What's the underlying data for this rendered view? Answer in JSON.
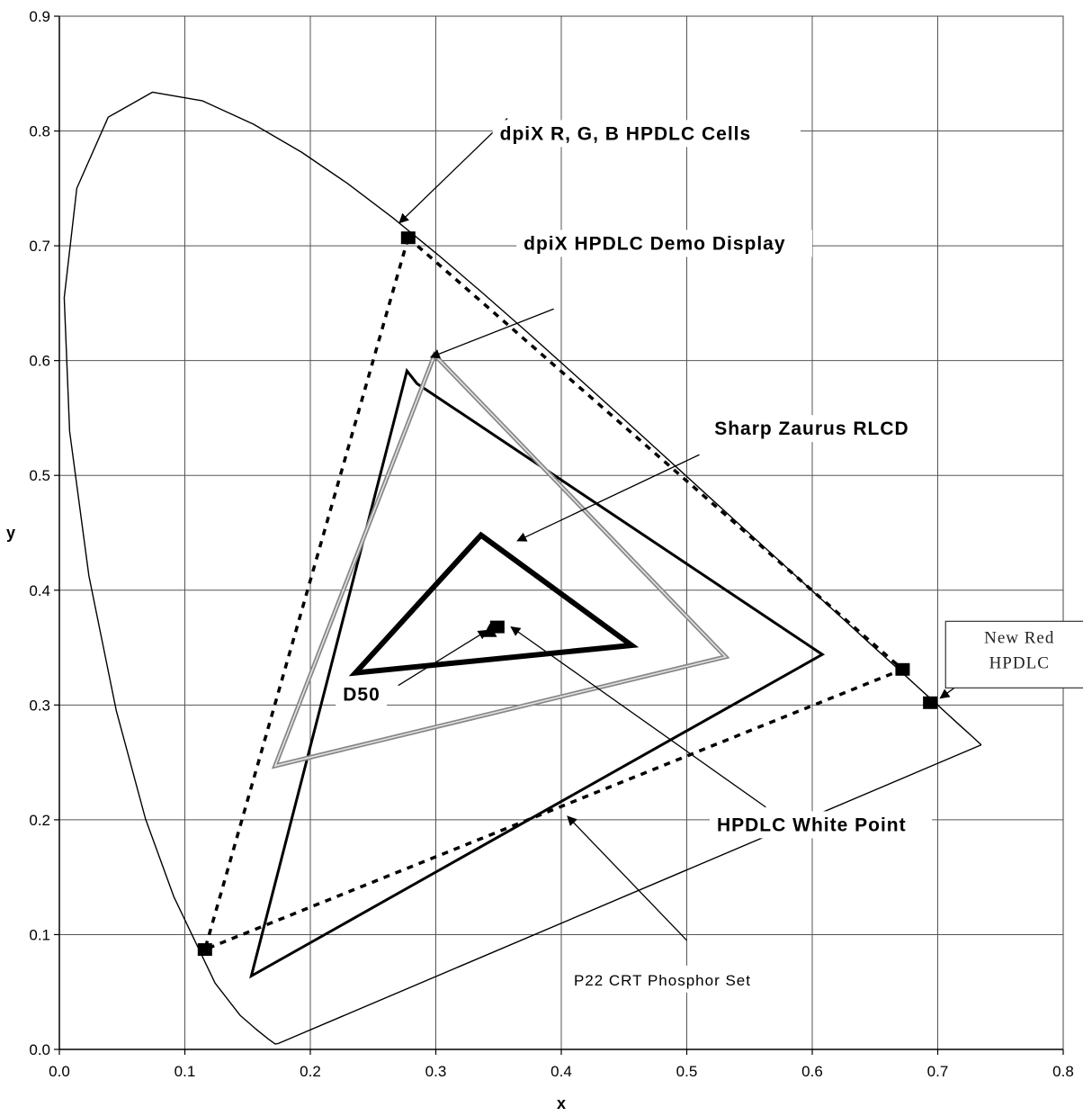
{
  "chart_data": {
    "type": "scatter",
    "title": "",
    "xlabel": "x",
    "ylabel": "y",
    "xlim": [
      0,
      0.8
    ],
    "ylim": [
      0,
      0.9
    ],
    "grid": true,
    "x_ticks": [
      "0.0",
      "0.1",
      "0.2",
      "0.3",
      "0.4",
      "0.5",
      "0.6",
      "0.7",
      "0.8"
    ],
    "y_ticks": [
      "0.0",
      "0.1",
      "0.2",
      "0.3",
      "0.4",
      "0.5",
      "0.6",
      "0.7",
      "0.8",
      "0.9"
    ],
    "spectral_locus": [
      [
        0.1741,
        0.005
      ],
      [
        0.172,
        0.0048
      ],
      [
        0.1666,
        0.0089
      ],
      [
        0.1566,
        0.0177
      ],
      [
        0.144,
        0.0297
      ],
      [
        0.1241,
        0.0578
      ],
      [
        0.0913,
        0.1327
      ],
      [
        0.0687,
        0.2007
      ],
      [
        0.0454,
        0.295
      ],
      [
        0.0235,
        0.4127
      ],
      [
        0.0082,
        0.5384
      ],
      [
        0.0039,
        0.6548
      ],
      [
        0.0139,
        0.7502
      ],
      [
        0.0389,
        0.812
      ],
      [
        0.0743,
        0.8338
      ],
      [
        0.1142,
        0.8262
      ],
      [
        0.1547,
        0.8059
      ],
      [
        0.1929,
        0.7816
      ],
      [
        0.2296,
        0.7543
      ],
      [
        0.2658,
        0.7243
      ],
      [
        0.3016,
        0.6923
      ],
      [
        0.3373,
        0.6589
      ],
      [
        0.3731,
        0.6245
      ],
      [
        0.4087,
        0.5896
      ],
      [
        0.4441,
        0.5547
      ],
      [
        0.4788,
        0.5202
      ],
      [
        0.5125,
        0.4866
      ],
      [
        0.5448,
        0.4544
      ],
      [
        0.5752,
        0.4242
      ],
      [
        0.6029,
        0.3965
      ],
      [
        0.627,
        0.3725
      ],
      [
        0.6482,
        0.3514
      ],
      [
        0.6658,
        0.334
      ],
      [
        0.6801,
        0.3197
      ],
      [
        0.6915,
        0.3083
      ],
      [
        0.7006,
        0.2993
      ],
      [
        0.7079,
        0.292
      ],
      [
        0.714,
        0.2859
      ],
      [
        0.719,
        0.2809
      ],
      [
        0.723,
        0.277
      ],
      [
        0.726,
        0.274
      ],
      [
        0.7347,
        0.2653
      ]
    ],
    "purple_line": [
      [
        0.1741,
        0.005
      ],
      [
        0.7347,
        0.2653
      ]
    ],
    "series": [
      {
        "style": "dotted-black",
        "closed": true,
        "points": [
          [
            0.278,
            0.707
          ],
          [
            0.672,
            0.331
          ],
          [
            0.116,
            0.087
          ]
        ]
      },
      {
        "style": "thin-black",
        "closed": true,
        "points": [
          [
            0.277,
            0.591
          ],
          [
            0.285,
            0.58
          ],
          [
            0.608,
            0.344
          ],
          [
            0.153,
            0.064
          ]
        ]
      },
      {
        "style": "grey-double",
        "closed": true,
        "points": [
          [
            0.299,
            0.605
          ],
          [
            0.531,
            0.342
          ],
          [
            0.172,
            0.247
          ]
        ]
      },
      {
        "style": "thick-black",
        "closed": true,
        "points": [
          [
            0.336,
            0.448
          ],
          [
            0.456,
            0.352
          ],
          [
            0.236,
            0.328
          ]
        ]
      }
    ],
    "markers": [
      {
        "shape": "square",
        "x": 0.278,
        "y": 0.707
      },
      {
        "shape": "square",
        "x": 0.672,
        "y": 0.331
      },
      {
        "shape": "square",
        "x": 0.116,
        "y": 0.087
      },
      {
        "shape": "square",
        "x": 0.694,
        "y": 0.302
      },
      {
        "shape": "square",
        "x": 0.349,
        "y": 0.368
      },
      {
        "shape": "triangle",
        "x": 0.343,
        "y": 0.364
      }
    ],
    "annotations": [
      {
        "text": "dpiX R, G, B HPDLC Cells",
        "style": "bold",
        "anchor": [
          0.351,
          0.7923
        ],
        "arrow_from": [
          0.357,
          0.811
        ],
        "arrow_to": [
          0.271,
          0.72
        ]
      },
      {
        "text": "dpiX HPDLC Demo Display",
        "style": "bold",
        "anchor": [
          0.37,
          0.6966
        ],
        "arrow_from": [
          0.394,
          0.645
        ],
        "arrow_to": [
          0.296,
          0.603
        ]
      },
      {
        "text": "Sharp Zaurus RLCD",
        "style": "bold",
        "anchor": [
          0.522,
          0.5353
        ],
        "arrow_from": [
          0.51,
          0.518
        ],
        "arrow_to": [
          0.365,
          0.443
        ]
      },
      {
        "text": "D50",
        "style": "bold",
        "anchor": [
          0.226,
          0.3039
        ],
        "arrow_from": [
          0.27,
          0.317
        ],
        "arrow_to": [
          0.341,
          0.365
        ]
      },
      {
        "text": "HPDLC White Point",
        "style": "bold",
        "anchor": [
          0.524,
          0.1902
        ],
        "arrow_from": [
          0.563,
          0.211
        ],
        "arrow_to": [
          0.36,
          0.368
        ]
      },
      {
        "text": "P22 CRT Phosphor Set",
        "style": "plain",
        "anchor": [
          0.41,
          0.0558
        ],
        "arrow_from": [
          0.5,
          0.095
        ],
        "arrow_to": [
          0.405,
          0.203
        ]
      },
      {
        "text": "New Red HPDLC",
        "lines": [
          "New Red",
          "HPDLC"
        ],
        "style": "serif-boxed",
        "anchor": [
          0.712,
          0.3541
        ],
        "arrow_from": [
          0.726,
          0.325
        ],
        "arrow_to": [
          0.702,
          0.306
        ]
      }
    ]
  }
}
